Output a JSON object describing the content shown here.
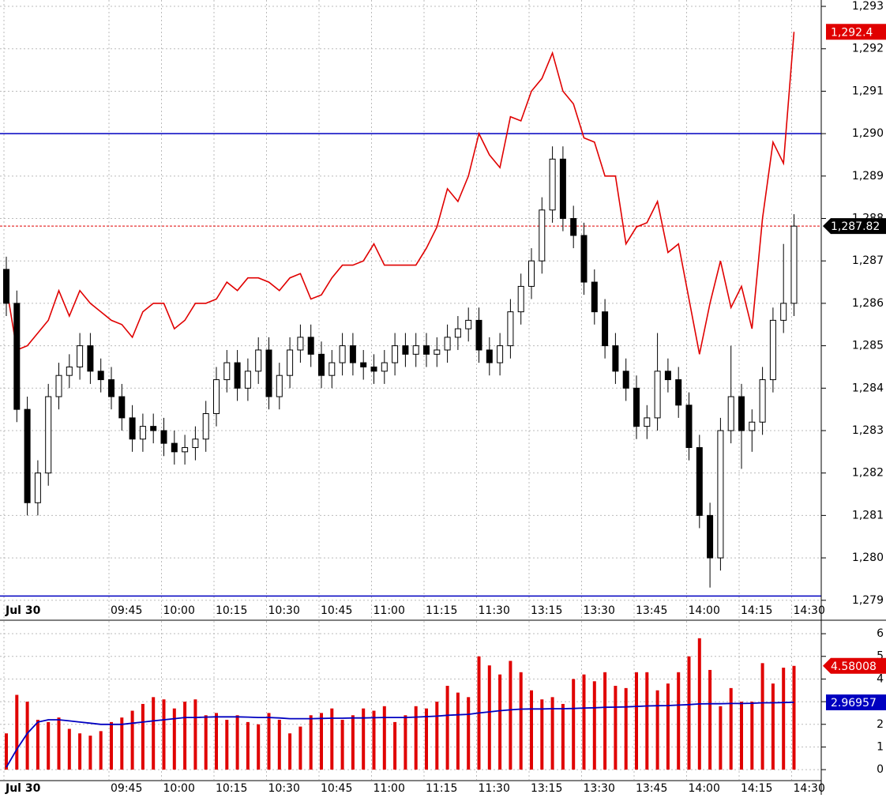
{
  "chart_data": [
    {
      "type": "candlestick",
      "categories": [
        "Jul 30",
        null,
        null,
        null,
        null,
        null,
        null,
        null,
        null,
        null,
        "09:45",
        null,
        null,
        null,
        null,
        "10:00",
        null,
        null,
        null,
        null,
        "10:15",
        null,
        null,
        null,
        null,
        "10:30",
        null,
        null,
        null,
        null,
        "10:45",
        null,
        null,
        null,
        null,
        "11:00",
        null,
        null,
        null,
        null,
        "11:15",
        null,
        null,
        null,
        null,
        "11:30",
        null,
        null,
        null,
        null,
        "13:15",
        null,
        null,
        null,
        null,
        "13:30",
        null,
        null,
        null,
        null,
        "13:45",
        null,
        null,
        null,
        null,
        "14:00",
        null,
        null,
        null,
        null,
        "14:15",
        null,
        null,
        null,
        null,
        "14:30"
      ],
      "ohlc": {
        "open": [
          1286.8,
          1286.0,
          1283.5,
          1281.3,
          1282.0,
          1283.8,
          1284.3,
          1284.5,
          1285.0,
          1284.4,
          1284.2,
          1283.8,
          1283.3,
          1282.8,
          1283.1,
          1283.0,
          1282.7,
          1282.5,
          1282.6,
          1282.8,
          1283.4,
          1284.2,
          1284.6,
          1284.0,
          1284.4,
          1284.9,
          1283.8,
          1284.3,
          1284.9,
          1285.2,
          1284.8,
          1284.3,
          1284.6,
          1285.0,
          1284.6,
          1284.5,
          1284.4,
          1284.6,
          1285.0,
          1284.8,
          1285.0,
          1284.8,
          1284.9,
          1285.2,
          1285.4,
          1285.6,
          1284.9,
          1284.6,
          1285.0,
          1285.8,
          1286.4,
          1287.0,
          1288.2,
          1289.4,
          1288.0,
          1287.6,
          1286.5,
          1285.8,
          1285.0,
          1284.4,
          1284.0,
          1283.1,
          1283.3,
          1284.4,
          1284.2,
          1283.6,
          1282.6,
          1281.0,
          1280.0,
          1283.0,
          1283.8,
          1283.0,
          1283.2,
          1284.2,
          1285.6,
          1286.0
        ],
        "high": [
          1287.1,
          1286.3,
          1283.8,
          1282.3,
          1284.1,
          1284.6,
          1284.8,
          1285.3,
          1285.3,
          1284.7,
          1284.5,
          1284.1,
          1283.6,
          1283.4,
          1283.4,
          1283.3,
          1283.0,
          1282.9,
          1283.1,
          1283.7,
          1284.5,
          1284.9,
          1284.9,
          1284.7,
          1285.2,
          1285.2,
          1284.6,
          1285.2,
          1285.5,
          1285.5,
          1285.1,
          1284.9,
          1285.3,
          1285.3,
          1284.9,
          1284.8,
          1284.9,
          1285.3,
          1285.3,
          1285.3,
          1285.3,
          1285.2,
          1285.5,
          1285.7,
          1285.9,
          1285.9,
          1285.2,
          1285.3,
          1286.1,
          1286.7,
          1287.3,
          1288.5,
          1289.7,
          1289.7,
          1288.3,
          1287.9,
          1286.8,
          1286.1,
          1285.3,
          1284.7,
          1284.3,
          1283.6,
          1285.3,
          1284.7,
          1284.5,
          1283.9,
          1282.9,
          1281.3,
          1283.3,
          1285.0,
          1284.1,
          1283.5,
          1284.5,
          1285.9,
          1287.4,
          1288.1
        ],
        "low": [
          1285.7,
          1283.2,
          1281.0,
          1281.0,
          1281.7,
          1283.5,
          1284.0,
          1284.2,
          1284.1,
          1283.9,
          1283.5,
          1283.0,
          1282.5,
          1282.5,
          1282.7,
          1282.4,
          1282.2,
          1282.2,
          1282.3,
          1282.5,
          1283.1,
          1283.9,
          1283.7,
          1283.7,
          1284.1,
          1283.5,
          1283.5,
          1284.0,
          1284.6,
          1284.5,
          1284.0,
          1284.0,
          1284.3,
          1284.3,
          1284.2,
          1284.1,
          1284.1,
          1284.3,
          1284.5,
          1284.5,
          1284.5,
          1284.5,
          1284.6,
          1284.9,
          1285.1,
          1284.6,
          1284.3,
          1284.3,
          1284.7,
          1285.5,
          1286.1,
          1286.7,
          1287.9,
          1287.7,
          1287.3,
          1286.2,
          1285.5,
          1284.7,
          1284.1,
          1283.7,
          1282.8,
          1282.8,
          1283.0,
          1283.9,
          1283.3,
          1282.3,
          1280.7,
          1279.3,
          1279.7,
          1282.7,
          1282.1,
          1282.5,
          1282.9,
          1283.9,
          1285.3,
          1285.7
        ],
        "close": [
          1286.0,
          1283.5,
          1281.3,
          1282.0,
          1283.8,
          1284.3,
          1284.5,
          1285.0,
          1284.4,
          1284.2,
          1283.8,
          1283.3,
          1282.8,
          1283.1,
          1283.0,
          1282.7,
          1282.5,
          1282.6,
          1282.8,
          1283.4,
          1284.2,
          1284.6,
          1284.0,
          1284.4,
          1284.9,
          1283.8,
          1284.3,
          1284.9,
          1285.2,
          1284.8,
          1284.3,
          1284.6,
          1285.0,
          1284.6,
          1284.5,
          1284.4,
          1284.6,
          1285.0,
          1284.8,
          1285.0,
          1284.8,
          1284.9,
          1285.2,
          1285.4,
          1285.6,
          1284.9,
          1284.6,
          1285.0,
          1285.8,
          1286.4,
          1287.0,
          1288.2,
          1289.4,
          1288.0,
          1287.6,
          1286.5,
          1285.8,
          1285.0,
          1284.4,
          1284.0,
          1283.1,
          1283.3,
          1284.4,
          1284.2,
          1283.6,
          1282.6,
          1281.0,
          1280.0,
          1283.0,
          1283.8,
          1283.0,
          1283.2,
          1284.2,
          1285.6,
          1286.0,
          1287.82
        ]
      },
      "line": {
        "color": "#e00000",
        "values": [
          1286.4,
          1284.9,
          1285.0,
          1285.3,
          1285.6,
          1286.3,
          1285.7,
          1286.3,
          1286.0,
          1285.8,
          1285.6,
          1285.5,
          1285.2,
          1285.8,
          1286.0,
          1286.0,
          1285.4,
          1285.6,
          1286.0,
          1286.0,
          1286.1,
          1286.5,
          1286.3,
          1286.6,
          1286.6,
          1286.5,
          1286.3,
          1286.6,
          1286.7,
          1286.1,
          1286.2,
          1286.6,
          1286.9,
          1286.9,
          1287.0,
          1287.4,
          1286.9,
          1286.9,
          1286.9,
          1286.9,
          1287.3,
          1287.8,
          1288.7,
          1288.4,
          1289.0,
          1290.0,
          1289.5,
          1289.2,
          1290.4,
          1290.3,
          1291.0,
          1291.3,
          1291.9,
          1291.0,
          1290.7,
          1289.9,
          1289.8,
          1289.0,
          1289.0,
          1287.4,
          1287.8,
          1287.9,
          1288.4,
          1287.2,
          1287.4,
          1286.1,
          1284.8,
          1286.0,
          1287.0,
          1285.9,
          1286.4,
          1285.4,
          1288.0,
          1289.8,
          1289.3,
          1292.4
        ]
      },
      "line_last": {
        "value": 1292.4,
        "label": "1,292.4"
      },
      "last_price": {
        "value": 1287.82,
        "label": "1,287.82"
      },
      "levels": [
        {
          "value": 1290.0,
          "color": "#0000c0"
        },
        {
          "value": 1279.1,
          "color": "#0000c0"
        }
      ],
      "up_color": "#ffffff",
      "down_color": "#000000",
      "ylim": [
        1278.53,
        1293.15
      ],
      "yticks": [
        {
          "value": 1279,
          "label": "1,279"
        },
        {
          "value": 1280,
          "label": "1,280"
        },
        {
          "value": 1281,
          "label": "1,281"
        },
        {
          "value": 1282,
          "label": "1,282"
        },
        {
          "value": 1283,
          "label": "1,283"
        },
        {
          "value": 1284,
          "label": "1,284"
        },
        {
          "value": 1285,
          "label": "1,285"
        },
        {
          "value": 1286,
          "label": "1,286"
        },
        {
          "value": 1287,
          "label": "1,287"
        },
        {
          "value": 1288,
          "label": "1,288"
        },
        {
          "value": 1289,
          "label": "1,289"
        },
        {
          "value": 1290,
          "label": "1,290"
        },
        {
          "value": 1291,
          "label": "1,291"
        },
        {
          "value": 1292,
          "label": "1,292"
        },
        {
          "value": 1293,
          "label": "1,293"
        }
      ],
      "grid": true
    },
    {
      "type": "bar",
      "categories": [
        "Jul 30",
        null,
        null,
        null,
        null,
        null,
        null,
        null,
        null,
        null,
        "09:45",
        null,
        null,
        null,
        null,
        "10:00",
        null,
        null,
        null,
        null,
        "10:15",
        null,
        null,
        null,
        null,
        "10:30",
        null,
        null,
        null,
        null,
        "10:45",
        null,
        null,
        null,
        null,
        "11:00",
        null,
        null,
        null,
        null,
        "11:15",
        null,
        null,
        null,
        null,
        "11:30",
        null,
        null,
        null,
        null,
        "13:15",
        null,
        null,
        null,
        null,
        "13:30",
        null,
        null,
        null,
        null,
        "13:45",
        null,
        null,
        null,
        null,
        "14:00",
        null,
        null,
        null,
        null,
        "14:15",
        null,
        null,
        null,
        null,
        "14:30"
      ],
      "values": [
        1.6,
        3.3,
        3.0,
        2.2,
        2.1,
        2.3,
        1.8,
        1.6,
        1.5,
        1.7,
        2.1,
        2.3,
        2.6,
        2.9,
        3.2,
        3.1,
        2.7,
        3.0,
        3.1,
        2.4,
        2.5,
        2.2,
        2.4,
        2.1,
        2.0,
        2.5,
        2.2,
        1.6,
        1.9,
        2.4,
        2.5,
        2.7,
        2.2,
        2.4,
        2.7,
        2.6,
        2.8,
        2.1,
        2.4,
        2.8,
        2.7,
        3.0,
        3.7,
        3.4,
        3.2,
        5.0,
        4.6,
        4.2,
        4.8,
        4.3,
        3.5,
        3.1,
        3.2,
        2.9,
        4.0,
        4.2,
        3.9,
        4.3,
        3.7,
        3.6,
        4.3,
        4.3,
        3.5,
        3.8,
        4.3,
        5.0,
        5.8,
        4.4,
        2.8,
        3.6,
        3.0,
        3.0,
        4.7,
        3.8,
        4.5,
        4.58008
      ],
      "color": "#e00000",
      "average": {
        "color": "#0000c0",
        "values": [
          0.1,
          0.9,
          1.6,
          2.1,
          2.2,
          2.2,
          2.15,
          2.1,
          2.05,
          2.0,
          2.0,
          2.0,
          2.05,
          2.1,
          2.15,
          2.2,
          2.25,
          2.3,
          2.3,
          2.32,
          2.33,
          2.33,
          2.33,
          2.32,
          2.3,
          2.3,
          2.28,
          2.25,
          2.25,
          2.25,
          2.26,
          2.27,
          2.27,
          2.28,
          2.28,
          2.29,
          2.3,
          2.3,
          2.3,
          2.32,
          2.34,
          2.36,
          2.4,
          2.42,
          2.44,
          2.5,
          2.55,
          2.6,
          2.64,
          2.67,
          2.68,
          2.68,
          2.69,
          2.69,
          2.7,
          2.72,
          2.73,
          2.75,
          2.76,
          2.77,
          2.79,
          2.81,
          2.82,
          2.83,
          2.85,
          2.87,
          2.9,
          2.91,
          2.91,
          2.92,
          2.92,
          2.93,
          2.95,
          2.95,
          2.96,
          2.96957
        ]
      },
      "ylim": [
        -0.45,
        6.56
      ],
      "yticks": [
        0,
        1,
        2,
        3,
        4,
        5,
        6
      ],
      "grid": true
    }
  ]
}
